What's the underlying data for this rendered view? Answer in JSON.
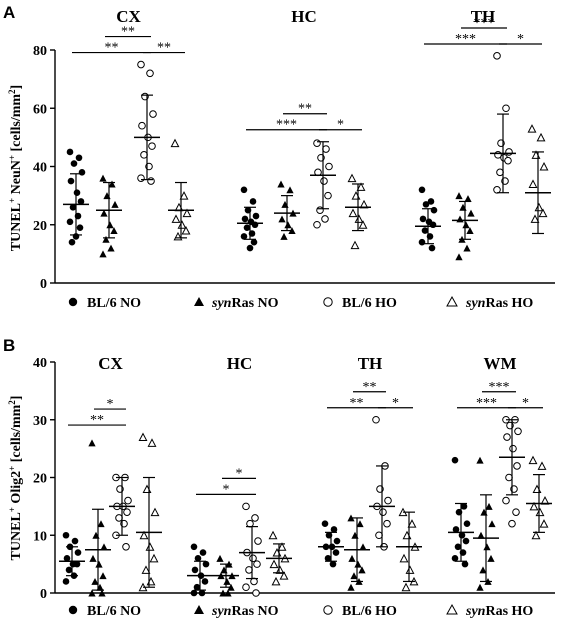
{
  "panels": [
    {
      "letter": "A",
      "ylabel": "TUNEL+ NeuN+ [cells/mm²]",
      "ylabel_parts": [
        "TUNEL",
        "+",
        " NeuN",
        "+",
        " [cells/mm",
        "2",
        "]"
      ],
      "legend": {
        "bl6_no": "BL/6 NO",
        "synras_no_em": "syn",
        "synras_no_rest": "Ras NO",
        "bl6_ho": "BL/6 HO",
        "synras_ho_em": "syn",
        "synras_ho_rest": "Ras HO"
      }
    },
    {
      "letter": "B",
      "ylabel": "TUNEL+ Olig2+ [cells/mm²]",
      "ylabel_parts": [
        "TUNEL",
        "+",
        " Olig2",
        "+",
        " [cells/mm",
        "2",
        "]"
      ],
      "legend": {
        "bl6_no": "BL/6 NO",
        "synras_no_em": "syn",
        "synras_no_rest": "Ras NO",
        "bl6_ho": "BL/6 HO",
        "synras_ho_em": "syn",
        "synras_ho_rest": "Ras HO"
      }
    }
  ],
  "chart_data": [
    {
      "type": "scatter",
      "panel": "A",
      "ylim": [
        0,
        80
      ],
      "yticks": [
        "0",
        "20",
        "40",
        "60",
        "80"
      ],
      "groups": [
        "BL/6 NO",
        "synRas NO",
        "BL/6 HO",
        "synRas HO"
      ],
      "regions": [
        {
          "name": "CX",
          "series": [
            {
              "group": "BL/6 NO",
              "mean": 27,
              "sd": 10.5,
              "points": [
                45,
                43,
                41,
                38,
                35,
                31,
                28,
                26,
                23,
                21,
                19,
                16,
                14
              ]
            },
            {
              "group": "synRas NO",
              "mean": 25,
              "sd": 9.5,
              "points": [
                36,
                34,
                30,
                27,
                24,
                20,
                18,
                15,
                12,
                10
              ]
            },
            {
              "group": "BL/6 HO",
              "mean": 50,
              "sd": 14.5,
              "points": [
                75,
                72,
                64,
                58,
                54,
                50,
                47,
                44,
                40,
                36,
                35
              ]
            },
            {
              "group": "synRas HO",
              "mean": 25,
              "sd": 9.5,
              "points": [
                48,
                30,
                26,
                24,
                22,
                20,
                18,
                16
              ]
            }
          ],
          "comparisons": [
            {
              "from": 0,
              "to": 2,
              "label": "**"
            },
            {
              "from": 1,
              "to": 2,
              "label": "**"
            },
            {
              "from": 2,
              "to": 3,
              "label": "**"
            }
          ]
        },
        {
          "name": "HC",
          "series": [
            {
              "group": "BL/6 NO",
              "mean": 20.5,
              "sd": 5.5,
              "points": [
                32,
                28,
                25,
                23,
                22,
                21,
                20,
                19,
                17,
                16,
                14,
                12
              ]
            },
            {
              "group": "synRas NO",
              "mean": 24,
              "sd": 6,
              "points": [
                34,
                32,
                27,
                24,
                22,
                20,
                18,
                16
              ]
            },
            {
              "group": "BL/6 HO",
              "mean": 37,
              "sd": 11.5,
              "points": [
                48,
                46,
                43,
                40,
                38,
                35,
                30,
                25,
                22,
                20
              ]
            },
            {
              "group": "synRas HO",
              "mean": 26,
              "sd": 8,
              "points": [
                36,
                33,
                30,
                27,
                24,
                22,
                20,
                13
              ]
            }
          ],
          "comparisons": [
            {
              "from": 0,
              "to": 2,
              "label": "***"
            },
            {
              "from": 1,
              "to": 2,
              "label": "**"
            },
            {
              "from": 2,
              "to": 3,
              "label": "*"
            }
          ]
        },
        {
          "name": "TH",
          "series": [
            {
              "group": "BL/6 NO",
              "mean": 19.5,
              "sd": 6,
              "points": [
                32,
                28,
                27,
                25,
                22,
                21,
                20,
                18,
                16,
                14,
                12
              ]
            },
            {
              "group": "synRas NO",
              "mean": 21.5,
              "sd": 6.5,
              "points": [
                30,
                29,
                26,
                24,
                22,
                20,
                18,
                15,
                12,
                9
              ]
            },
            {
              "group": "BL/6 HO",
              "mean": 44.5,
              "sd": 13.5,
              "points": [
                78,
                60,
                48,
                45,
                44,
                43,
                42,
                38,
                35,
                32
              ]
            },
            {
              "group": "synRas HO",
              "mean": 31,
              "sd": 14,
              "points": [
                53,
                50,
                44,
                40,
                34,
                26,
                24,
                22
              ]
            }
          ],
          "comparisons": [
            {
              "from": 0,
              "to": 2,
              "label": "***"
            },
            {
              "from": 1,
              "to": 2,
              "label": "***"
            },
            {
              "from": 2,
              "to": 3,
              "label": "*"
            }
          ]
        }
      ]
    },
    {
      "type": "scatter",
      "panel": "B",
      "ylim": [
        0,
        40
      ],
      "yticks": [
        "0",
        "10",
        "20",
        "30",
        "40"
      ],
      "groups": [
        "BL/6 NO",
        "synRas NO",
        "BL/6 HO",
        "synRas HO"
      ],
      "regions": [
        {
          "name": "CX",
          "series": [
            {
              "group": "BL/6 NO",
              "mean": 5.5,
              "sd": 2.5,
              "points": [
                10,
                9,
                8,
                7,
                6,
                5,
                5,
                4,
                3,
                2
              ]
            },
            {
              "group": "synRas NO",
              "mean": 7.5,
              "sd": 7,
              "points": [
                26,
                12,
                10,
                8,
                6,
                5,
                3,
                2,
                1,
                0,
                0
              ]
            },
            {
              "group": "BL/6 HO",
              "mean": 15,
              "sd": 5,
              "points": [
                20,
                20,
                18,
                16,
                15,
                15,
                14,
                13,
                12,
                10,
                8
              ]
            },
            {
              "group": "synRas HO",
              "mean": 10.5,
              "sd": 9.5,
              "points": [
                27,
                26,
                18,
                14,
                10,
                8,
                6,
                4,
                2,
                1
              ]
            }
          ],
          "comparisons": [
            {
              "from": 0,
              "to": 2,
              "label": "**"
            },
            {
              "from": 1,
              "to": 2,
              "label": "*"
            }
          ]
        },
        {
          "name": "HC",
          "series": [
            {
              "group": "BL/6 NO",
              "mean": 3,
              "sd": 2.5,
              "points": [
                8,
                7,
                6,
                5,
                4,
                3,
                2,
                1,
                0,
                0
              ]
            },
            {
              "group": "synRas NO",
              "mean": 3,
              "sd": 2,
              "points": [
                6,
                5,
                4,
                3,
                3,
                2,
                1,
                0,
                0
              ]
            },
            {
              "group": "BL/6 HO",
              "mean": 7,
              "sd": 4.5,
              "points": [
                15,
                13,
                12,
                9,
                7,
                6,
                5,
                4,
                2,
                1,
                0
              ]
            },
            {
              "group": "synRas HO",
              "mean": 6,
              "sd": 2.5,
              "points": [
                10,
                8,
                7,
                6,
                5,
                4,
                3,
                2
              ]
            }
          ],
          "comparisons": [
            {
              "from": 0,
              "to": 2,
              "label": "*"
            },
            {
              "from": 1,
              "to": 2,
              "label": "*"
            }
          ]
        },
        {
          "name": "TH",
          "series": [
            {
              "group": "BL/6 NO",
              "mean": 8,
              "sd": 2.5,
              "points": [
                12,
                11,
                10,
                9,
                8,
                8,
                7,
                6,
                5
              ]
            },
            {
              "group": "synRas NO",
              "mean": 7.5,
              "sd": 5.5,
              "points": [
                13,
                12,
                10,
                8,
                6,
                5,
                4,
                3,
                2,
                1
              ]
            },
            {
              "group": "BL/6 HO",
              "mean": 15,
              "sd": 7,
              "points": [
                30,
                22,
                18,
                16,
                15,
                14,
                12,
                10,
                8
              ]
            },
            {
              "group": "synRas HO",
              "mean": 8,
              "sd": 6,
              "points": [
                14,
                12,
                10,
                8,
                6,
                4,
                2,
                1
              ]
            }
          ],
          "comparisons": [
            {
              "from": 0,
              "to": 2,
              "label": "**"
            },
            {
              "from": 1,
              "to": 2,
              "label": "**"
            },
            {
              "from": 2,
              "to": 3,
              "label": "*"
            }
          ]
        },
        {
          "name": "WM",
          "series": [
            {
              "group": "BL/6 NO",
              "mean": 10.5,
              "sd": 5,
              "points": [
                23,
                15,
                14,
                12,
                11,
                10,
                9,
                8,
                7,
                6,
                5
              ]
            },
            {
              "group": "synRas NO",
              "mean": 9.5,
              "sd": 7.5,
              "points": [
                23,
                15,
                14,
                12,
                10,
                8,
                6,
                4,
                2,
                1
              ]
            },
            {
              "group": "BL/6 HO",
              "mean": 23.5,
              "sd": 6.5,
              "points": [
                30,
                30,
                29,
                28,
                27,
                25,
                22,
                20,
                18,
                16,
                14,
                12
              ]
            },
            {
              "group": "synRas HO",
              "mean": 15.5,
              "sd": 5,
              "points": [
                23,
                22,
                18,
                16,
                15,
                14,
                12,
                10
              ]
            }
          ],
          "comparisons": [
            {
              "from": 0,
              "to": 2,
              "label": "***"
            },
            {
              "from": 1,
              "to": 2,
              "label": "***"
            },
            {
              "from": 2,
              "to": 3,
              "label": "*"
            }
          ]
        }
      ]
    }
  ]
}
